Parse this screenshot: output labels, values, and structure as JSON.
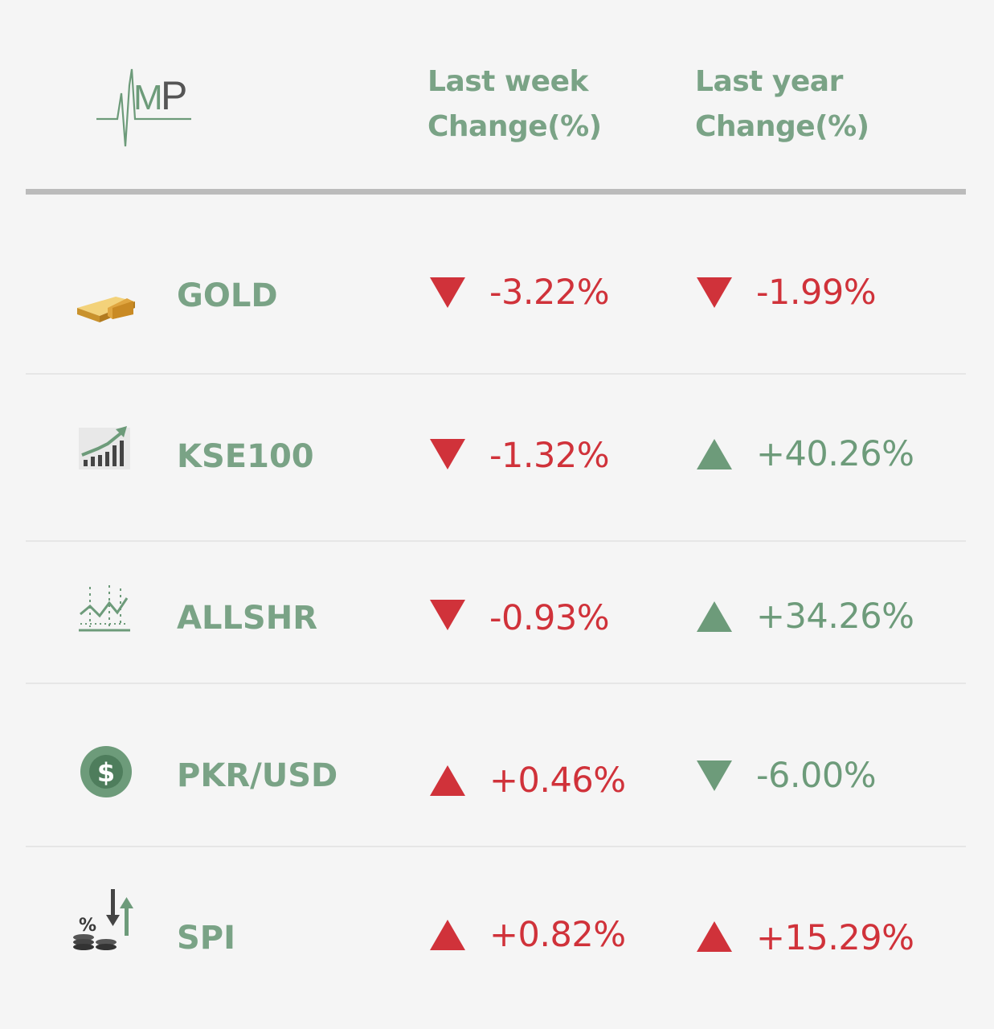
{
  "colors": {
    "up_green": "#6d9b7a",
    "down_red": "#d0323a",
    "header": "#7aa386",
    "rule": "#bbbbbb"
  },
  "logo": {
    "text": "MP",
    "icon": "heartbeat-mp-logo-icon"
  },
  "header": {
    "last_week": [
      "Last week",
      "Change(%)"
    ],
    "last_year": [
      "Last year",
      "Change(%)"
    ]
  },
  "rows": [
    {
      "name": "GOLD",
      "icon": "gold-bars-icon",
      "week": {
        "value": "-3.22%",
        "direction": "down",
        "color": "#d0323a"
      },
      "year": {
        "value": "-1.99%",
        "direction": "down",
        "color": "#d0323a"
      }
    },
    {
      "name": "KSE100",
      "icon": "rising-bar-chart-icon",
      "week": {
        "value": "-1.32%",
        "direction": "down",
        "color": "#d0323a"
      },
      "year": {
        "value": "+40.26%",
        "direction": "up",
        "color": "#6d9b7a"
      }
    },
    {
      "name": "ALLSHR",
      "icon": "line-chart-icon",
      "week": {
        "value": "-0.93%",
        "direction": "down",
        "color": "#d0323a"
      },
      "year": {
        "value": "+34.26%",
        "direction": "up",
        "color": "#6d9b7a"
      }
    },
    {
      "name": "PKR/USD",
      "icon": "dollar-coin-icon",
      "week": {
        "value": "+0.46%",
        "direction": "up",
        "color": "#d0323a"
      },
      "year": {
        "value": "-6.00%",
        "direction": "down",
        "color": "#6d9b7a"
      }
    },
    {
      "name": "SPI",
      "icon": "coins-percent-arrows-icon",
      "week": {
        "value": "+0.82%",
        "direction": "up",
        "color": "#d0323a"
      },
      "year": {
        "value": "+15.29%",
        "direction": "up",
        "color": "#d0323a"
      }
    }
  ]
}
